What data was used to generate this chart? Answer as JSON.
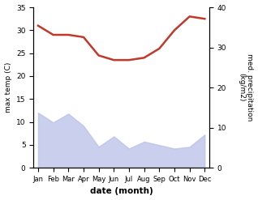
{
  "months": [
    "Jan",
    "Feb",
    "Mar",
    "Apr",
    "May",
    "Jun",
    "Jul",
    "Aug",
    "Sep",
    "Oct",
    "Nov",
    "Dec"
  ],
  "temp": [
    31.0,
    29.0,
    29.0,
    28.5,
    24.5,
    23.5,
    23.5,
    24.0,
    26.0,
    30.0,
    33.0,
    32.5
  ],
  "precip": [
    158,
    130,
    155,
    120,
    60,
    90,
    55,
    75,
    65,
    55,
    60,
    95
  ],
  "temp_color": "#c0392b",
  "precip_fill_color": "#b8c0e8",
  "precip_fill_alpha": 0.75,
  "ylabel_left": "max temp (C)",
  "ylabel_right": "med. precipitation\n(kg/m2)",
  "xlabel": "date (month)",
  "ylim_left": [
    0,
    35
  ],
  "ylim_right": [
    0,
    460
  ],
  "yticks_left": [
    0,
    5,
    10,
    15,
    20,
    25,
    30,
    35
  ],
  "yticks_right": [
    0,
    10,
    20,
    30,
    40
  ],
  "bg_color": "#ffffff"
}
